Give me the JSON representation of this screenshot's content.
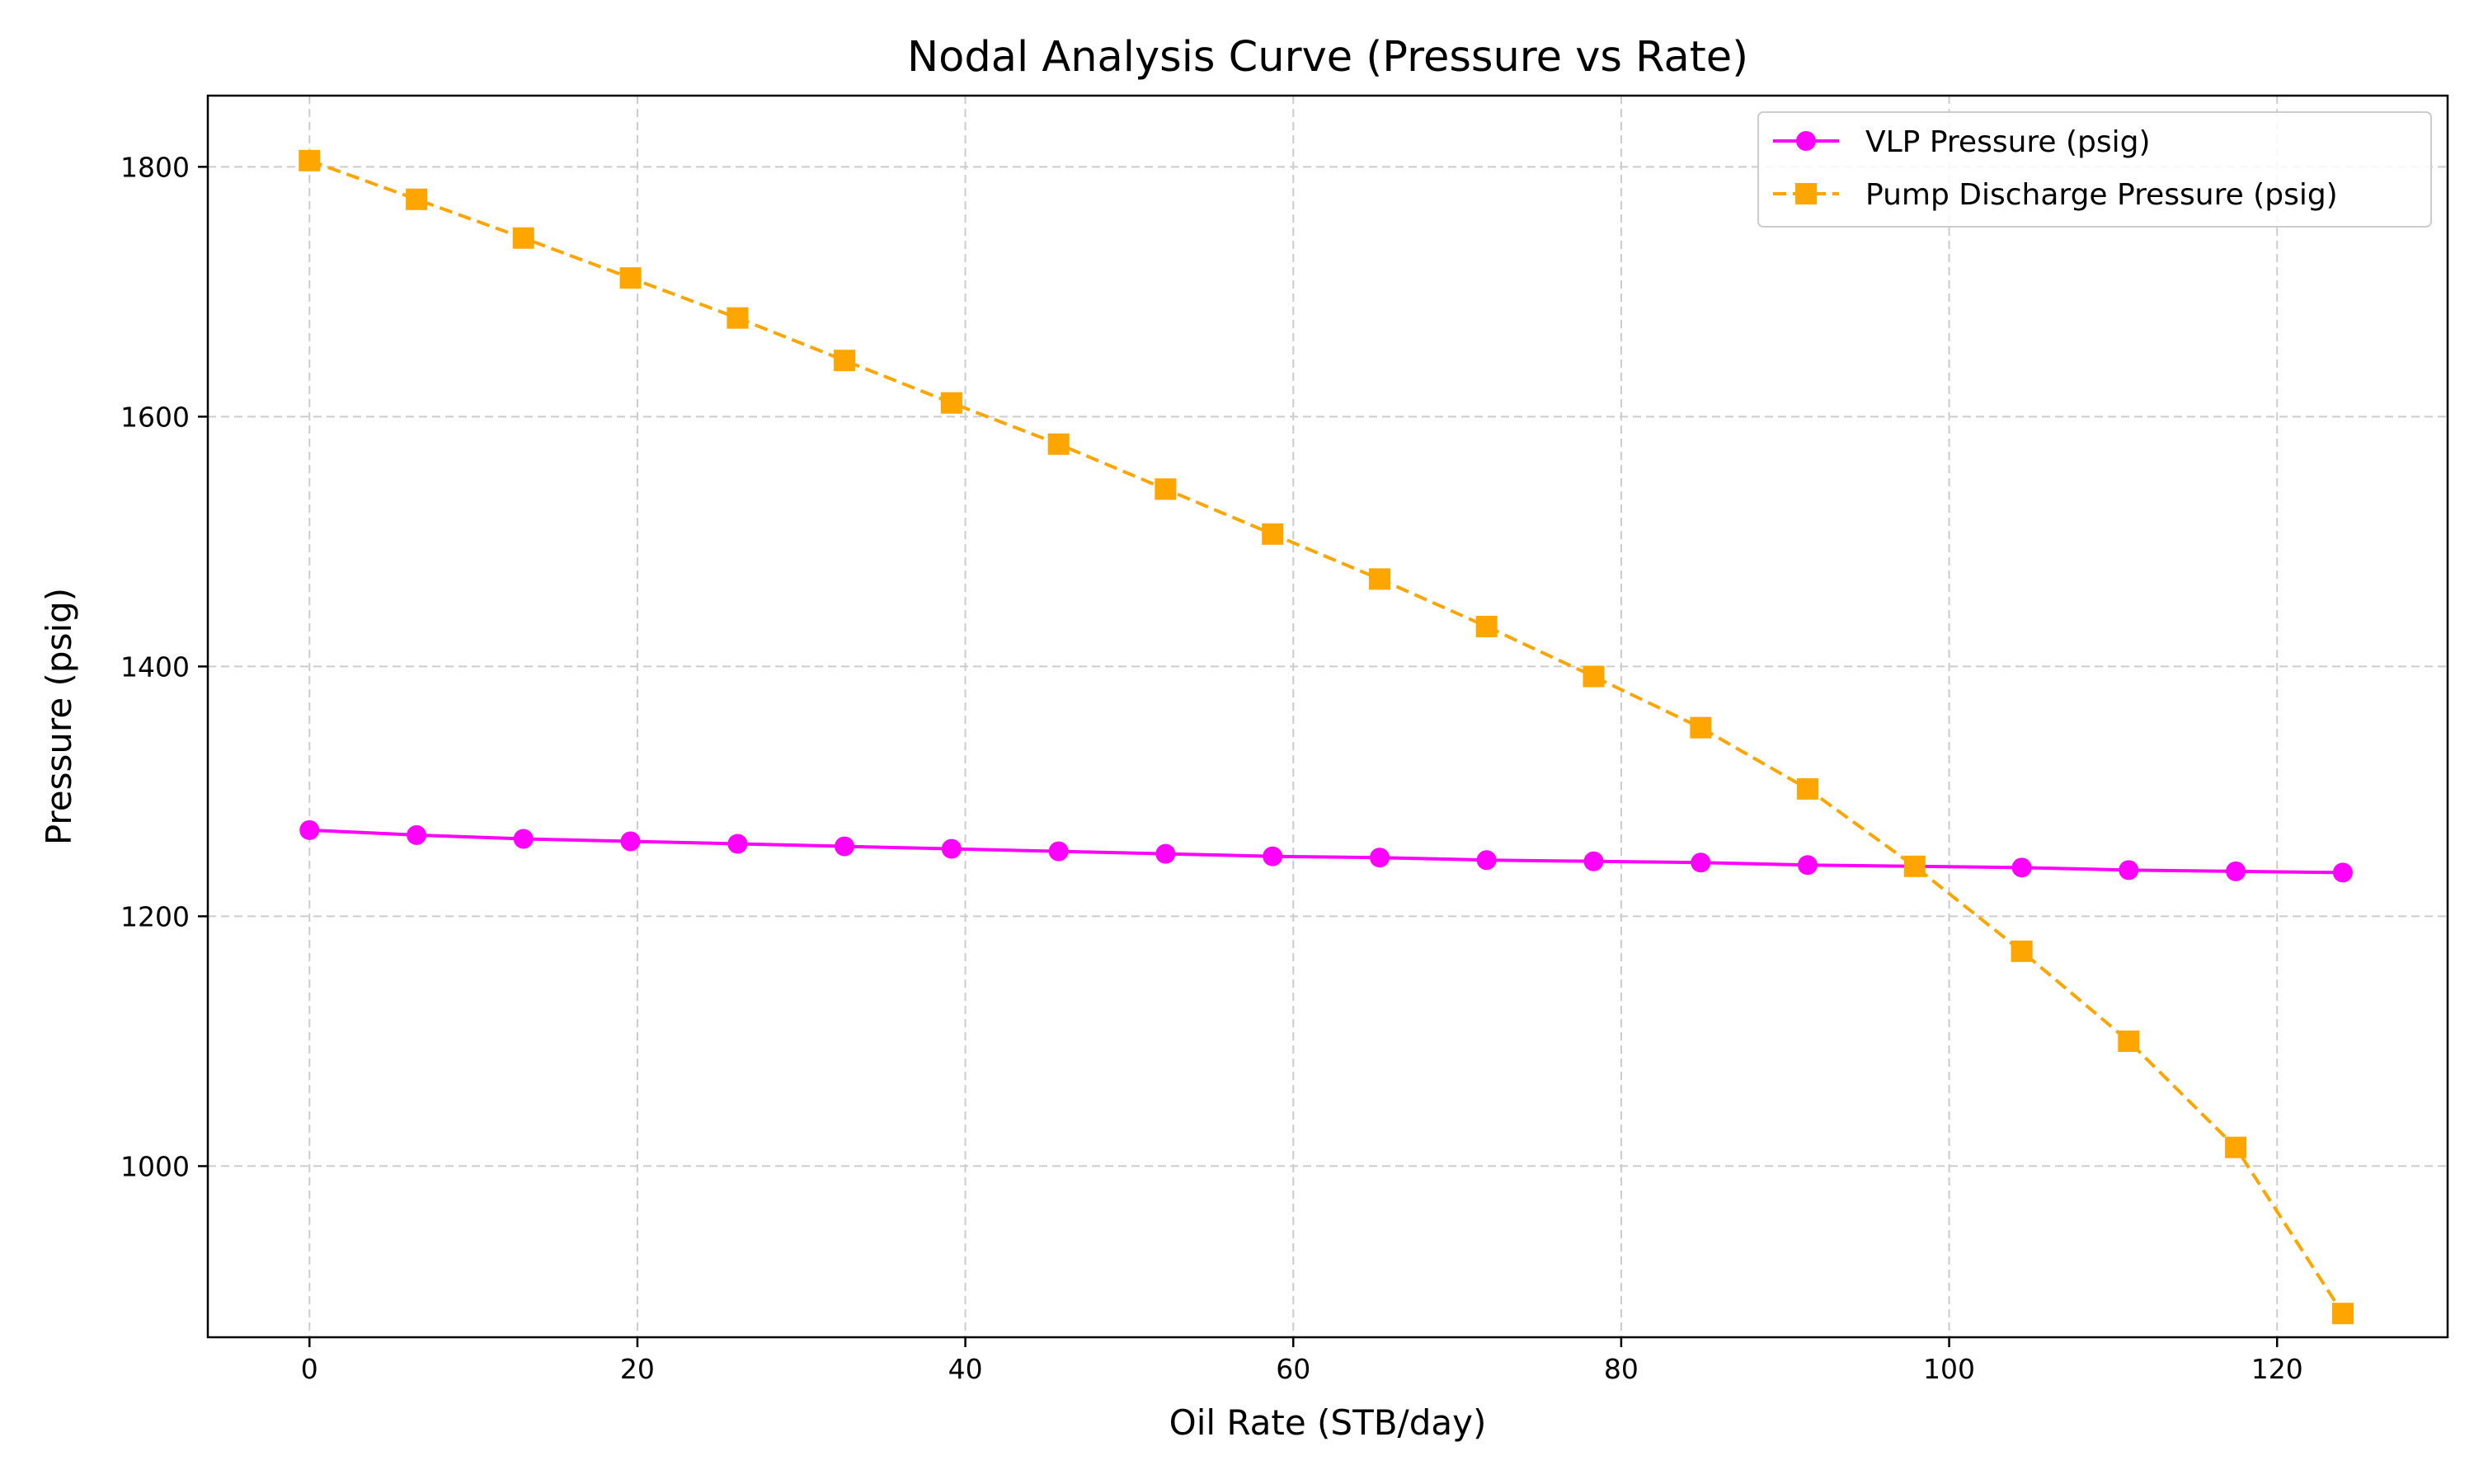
{
  "chart_data": {
    "type": "line",
    "title": "Nodal Analysis Curve (Pressure vs Rate)",
    "xlabel": "Oil Rate (STB/day)",
    "ylabel": "Pressure (psig)",
    "xlim": [
      -6.2,
      130.4
    ],
    "ylim": [
      863,
      1857
    ],
    "xticks": [
      0,
      20,
      40,
      60,
      80,
      100,
      120
    ],
    "yticks": [
      1000,
      1200,
      1400,
      1600,
      1800
    ],
    "grid": true,
    "legend_position": "top-right",
    "x": [
      0,
      6.53,
      13.05,
      19.58,
      26.11,
      32.63,
      39.16,
      45.69,
      52.21,
      58.74,
      65.27,
      71.79,
      78.32,
      84.85,
      91.37,
      97.9,
      104.43,
      110.95,
      117.48,
      124.01
    ],
    "series": [
      {
        "name": "VLP Pressure (psig)",
        "color": "#ff00ff",
        "marker": "circle",
        "line_style": "solid",
        "values": [
          1269,
          1265,
          1262,
          1260,
          1258,
          1256,
          1254,
          1252,
          1250,
          1248,
          1247,
          1245,
          1244,
          1243,
          1241,
          1240,
          1239,
          1237,
          1236,
          1235
        ]
      },
      {
        "name": "Pump Discharge Pressure (psig)",
        "color": "#ffa500",
        "marker": "square",
        "line_style": "dashed",
        "values": [
          1805,
          1774,
          1743,
          1711,
          1679,
          1645,
          1611,
          1578,
          1542,
          1506,
          1470,
          1432,
          1392,
          1351,
          1302,
          1240,
          1172,
          1100,
          1015,
          882
        ]
      }
    ]
  }
}
